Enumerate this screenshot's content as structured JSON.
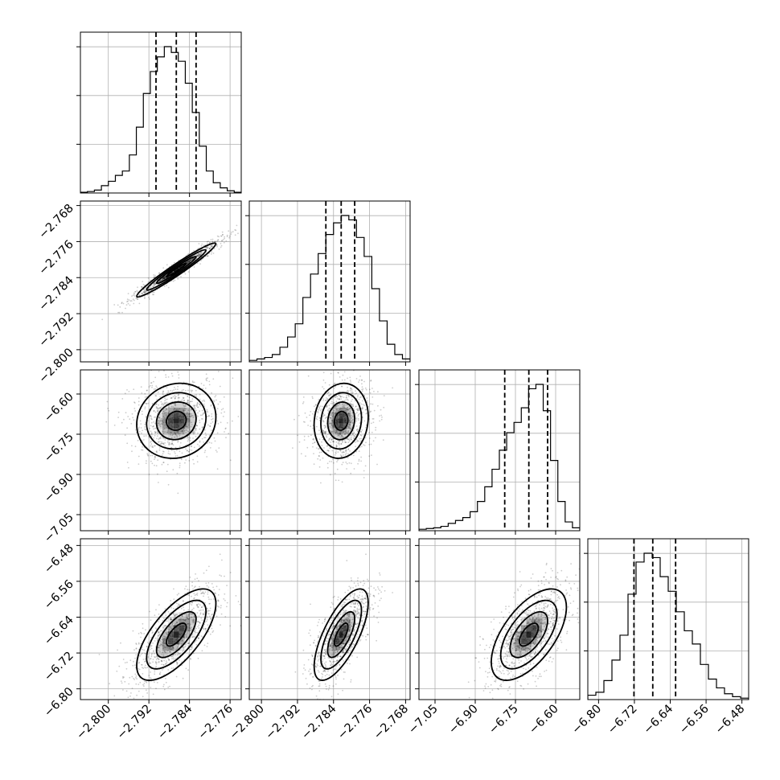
{
  "chart_data": {
    "type": "corner",
    "title": "",
    "parameters": [
      {
        "ticks": [
          "−2.800",
          "−2.792",
          "−2.784",
          "−2.776"
        ],
        "tick_values": [
          -2.8,
          -2.792,
          -2.784,
          -2.776
        ],
        "range": [
          -2.8055,
          -2.7738
        ],
        "median": -2.7866,
        "q16": -2.7906,
        "q84": -2.7827
      },
      {
        "ticks": [
          "−2.800",
          "−2.792",
          "−2.784",
          "−2.776",
          "−2.768"
        ],
        "tick_values": [
          -2.8,
          -2.792,
          -2.784,
          -2.776,
          -2.768
        ],
        "range": [
          -2.8027,
          -2.767
        ],
        "median": -2.7823,
        "q16": -2.7857,
        "q84": -2.7793
      },
      {
        "ticks": [
          "−7.05",
          "−6.90",
          "−6.75",
          "−6.60"
        ],
        "tick_values": [
          -7.05,
          -6.9,
          -6.75,
          -6.6
        ],
        "range": [
          -7.11,
          -6.51
        ],
        "median": -6.7,
        "q16": -6.79,
        "q84": -6.63
      },
      {
        "ticks": [
          "−6.80",
          "−6.72",
          "−6.64",
          "−6.56",
          "−6.48"
        ],
        "tick_values": [
          -6.8,
          -6.72,
          -6.64,
          -6.56,
          -6.48
        ],
        "range": [
          -6.824,
          -6.465
        ],
        "median": -6.679,
        "q16": -6.721,
        "q84": -6.628
      }
    ],
    "histograms": [
      [
        0.005,
        0.01,
        0.02,
        0.05,
        0.08,
        0.12,
        0.15,
        0.26,
        0.45,
        0.68,
        0.83,
        0.93,
        1.0,
        0.96,
        0.9,
        0.75,
        0.55,
        0.32,
        0.15,
        0.07,
        0.035,
        0.015,
        0.005
      ],
      [
        0.01,
        0.02,
        0.03,
        0.05,
        0.1,
        0.17,
        0.26,
        0.44,
        0.6,
        0.74,
        0.87,
        0.95,
        1.0,
        0.97,
        0.85,
        0.72,
        0.5,
        0.28,
        0.12,
        0.05,
        0.02
      ],
      [
        0.01,
        0.015,
        0.02,
        0.03,
        0.05,
        0.07,
        0.09,
        0.13,
        0.2,
        0.3,
        0.42,
        0.55,
        0.67,
        0.74,
        0.84,
        0.97,
        1.0,
        0.82,
        0.48,
        0.2,
        0.06,
        0.02
      ],
      [
        0.03,
        0.05,
        0.13,
        0.27,
        0.44,
        0.72,
        0.94,
        1.0,
        0.97,
        0.84,
        0.74,
        0.6,
        0.47,
        0.38,
        0.24,
        0.14,
        0.08,
        0.04,
        0.02,
        0.01
      ]
    ],
    "quantiles": [
      0.16,
      0.5,
      0.84
    ],
    "correlations": [
      [
        1,
        0.97,
        0.1,
        0.68
      ],
      [
        0.97,
        1,
        0.1,
        0.7
      ],
      [
        0.1,
        0.1,
        1,
        0.6
      ],
      [
        0.68,
        0.7,
        0.6,
        1
      ]
    ],
    "contour_levels": [
      0.5,
      1.0,
      1.5,
      2.0
    ],
    "grid": true
  }
}
